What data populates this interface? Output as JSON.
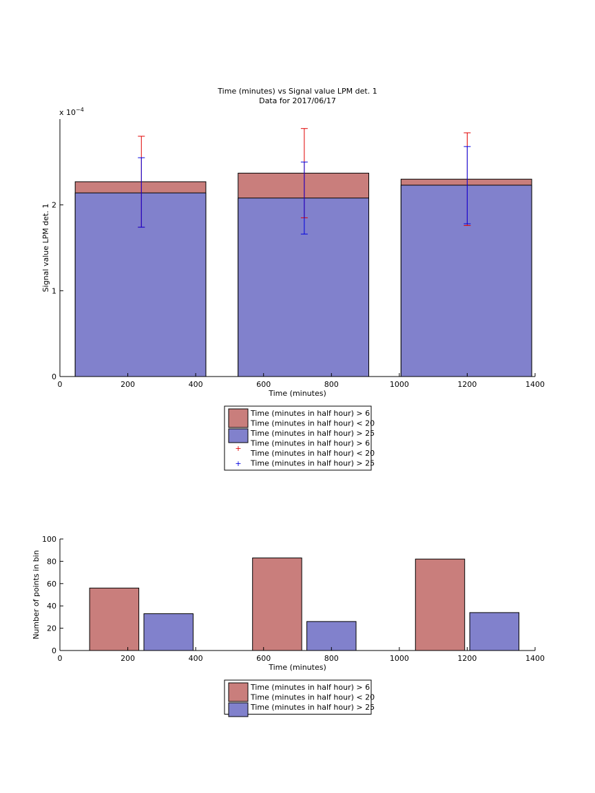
{
  "colors": {
    "group_a": "#c97e7c",
    "group_b": "#8181cc",
    "error_a": "#e00000",
    "error_b": "#0000e0",
    "axis": "#000000"
  },
  "chart_data": [
    {
      "type": "bar",
      "title": "Time (minutes) vs Signal value LPM det. 1",
      "subtitle": "Data for 2017/06/17",
      "xlabel": "Time (minutes)",
      "ylabel": "Signal value LPM det. 1",
      "exponent_base": "x 10",
      "exponent_power": "−4",
      "xlim": [
        0,
        1400
      ],
      "ylim": [
        0,
        0.0003
      ],
      "xticks": [
        0,
        200,
        400,
        600,
        800,
        1000,
        1200,
        1400
      ],
      "yticks": [
        0,
        0.0001,
        0.0002
      ],
      "ytick_labels": [
        "0",
        "1",
        "2"
      ],
      "bar_overlay": true,
      "bins": [
        {
          "x_start": 45,
          "x_end": 430
        },
        {
          "x_start": 525,
          "x_end": 910
        },
        {
          "x_start": 1005,
          "x_end": 1390
        }
      ],
      "series": [
        {
          "name": "Time (minutes in half hour) > 6\nTime (minutes in half hour) < 20",
          "color_key": "group_a",
          "values": [
            0.000227,
            0.000237,
            0.00023
          ]
        },
        {
          "name": "Time (minutes in half hour) > 25",
          "color_key": "group_b",
          "values": [
            0.000214,
            0.000208,
            0.000223
          ]
        }
      ],
      "errorbars": [
        {
          "name": "Time (minutes in half hour) > 6\nTime (minutes in half hour) < 20",
          "color_key": "error_a",
          "points": [
            {
              "x": 240,
              "y": 0.000227,
              "low": 0.000174,
              "high": 0.00028
            },
            {
              "x": 720,
              "y": 0.000237,
              "low": 0.000185,
              "high": 0.000289
            },
            {
              "x": 1200,
              "y": 0.00023,
              "low": 0.000176,
              "high": 0.000284
            }
          ]
        },
        {
          "name": "Time (minutes in half hour) > 25",
          "color_key": "error_b",
          "points": [
            {
              "x": 240,
              "y": 0.000214,
              "low": 0.000174,
              "high": 0.000255
            },
            {
              "x": 720,
              "y": 0.000208,
              "low": 0.000166,
              "high": 0.00025
            },
            {
              "x": 1200,
              "y": 0.000223,
              "low": 0.000178,
              "high": 0.000268
            }
          ]
        }
      ],
      "legend": {
        "placement": "below",
        "entries": [
          {
            "label_lines": [
              "Time (minutes in half hour) > 6",
              "Time (minutes in half hour) < 20"
            ],
            "kind": "patch",
            "color_key": "group_a"
          },
          {
            "label_lines": [
              "Time (minutes in half hour) > 25"
            ],
            "kind": "patch",
            "color_key": "group_b"
          },
          {
            "label_lines": [
              "Time (minutes in half hour) > 6",
              "Time (minutes in half hour) < 20"
            ],
            "kind": "marker",
            "color_key": "error_a"
          },
          {
            "label_lines": [
              "Time (minutes in half hour) > 25"
            ],
            "kind": "marker",
            "color_key": "error_b"
          }
        ]
      }
    },
    {
      "type": "bar",
      "title": "",
      "xlabel": "Time (minutes)",
      "ylabel": "Number of points in bin",
      "xlim": [
        0,
        1400
      ],
      "ylim": [
        0,
        100
      ],
      "xticks": [
        0,
        200,
        400,
        600,
        800,
        1000,
        1200,
        1400
      ],
      "yticks": [
        0,
        20,
        40,
        60,
        80,
        100
      ],
      "ytick_labels": [
        "0",
        "20",
        "40",
        "60",
        "80",
        "100"
      ],
      "bar_overlay": false,
      "bar_width": 145,
      "series": [
        {
          "name": "Time (minutes in half hour) > 6\nTime (minutes in half hour) < 20",
          "color_key": "group_a",
          "x_centers": [
            160,
            640,
            1120
          ],
          "values": [
            56,
            83,
            82
          ]
        },
        {
          "name": "Time (minutes in half hour) > 25",
          "color_key": "group_b",
          "x_centers": [
            320,
            800,
            1280
          ],
          "values": [
            33,
            26,
            34
          ]
        }
      ],
      "legend": {
        "placement": "below",
        "entries": [
          {
            "label_lines": [
              "Time (minutes in half hour) > 6",
              "Time (minutes in half hour) < 20"
            ],
            "kind": "patch",
            "color_key": "group_a"
          },
          {
            "label_lines": [
              "Time (minutes in half hour) > 25"
            ],
            "kind": "patch",
            "color_key": "group_b"
          }
        ]
      }
    }
  ]
}
